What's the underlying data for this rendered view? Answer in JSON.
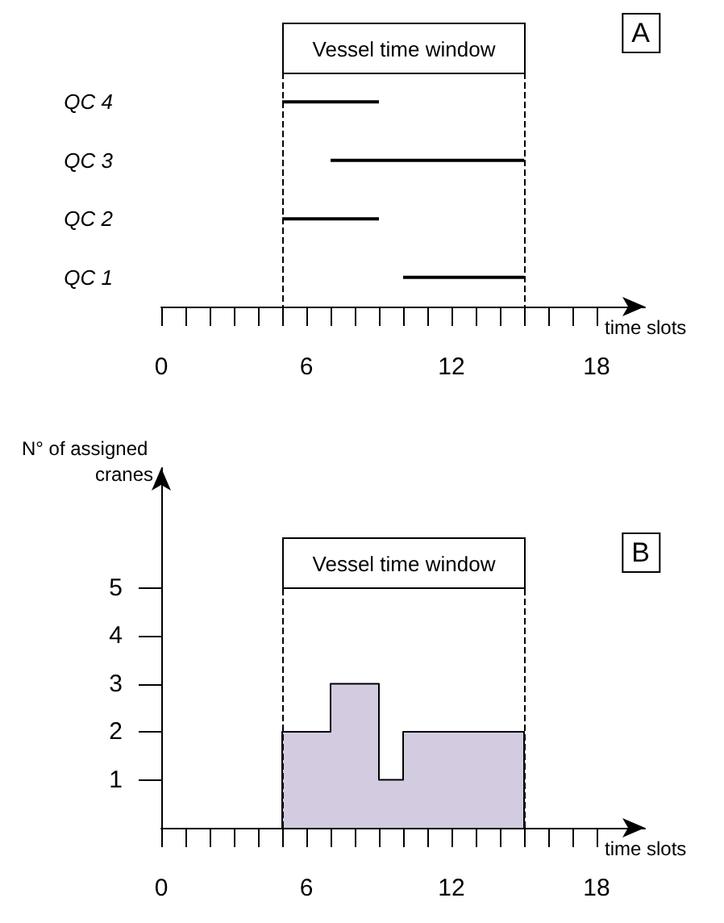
{
  "chart_data": [
    {
      "type": "bar",
      "title": "A",
      "orientation": "horizontal",
      "categories": [
        "QC 4",
        "QC 3",
        "QC 2",
        "QC 1"
      ],
      "base": [
        5,
        7,
        5,
        10
      ],
      "values": [
        4,
        8,
        4,
        5
      ],
      "color": "#000000",
      "xlabel": "time slots",
      "xlim": [
        0,
        20
      ],
      "xticks": [
        0,
        {
          "value": 1,
          "label": null
        },
        {
          "value": 2,
          "label": null
        },
        {
          "value": 3,
          "label": null
        },
        {
          "value": 4,
          "label": null
        },
        {
          "value": 5,
          "label": null
        },
        6,
        {
          "value": 7,
          "label": null
        },
        {
          "value": 8,
          "label": null
        },
        {
          "value": 9,
          "label": null
        },
        {
          "value": 10,
          "label": null
        },
        {
          "value": 11,
          "label": null
        },
        12,
        {
          "value": 13,
          "label": null
        },
        {
          "value": 14,
          "label": null
        },
        {
          "value": 15,
          "label": null
        },
        {
          "value": 16,
          "label": null
        },
        {
          "value": 17,
          "label": null
        },
        18
      ],
      "ref_lines": [
        {
          "axis": "x",
          "value": 5,
          "line_style": "dashed"
        },
        {
          "axis": "x",
          "value": 15,
          "line_style": "dashed"
        }
      ],
      "annotations": [
        "Vessel time window"
      ],
      "grid": false
    },
    {
      "type": "area",
      "title": "B",
      "x": [
        5,
        5,
        7,
        7,
        9,
        9,
        10,
        10,
        15,
        15
      ],
      "values": [
        0,
        2,
        2,
        3,
        3,
        1,
        1,
        2,
        2,
        0
      ],
      "color": "#d3cbe0",
      "xlabel": "time slots",
      "ylabel": "N° of assigned cranes",
      "xlim": [
        0,
        20
      ],
      "xticks": [
        0,
        {
          "value": 1,
          "label": null
        },
        {
          "value": 2,
          "label": null
        },
        {
          "value": 3,
          "label": null
        },
        {
          "value": 4,
          "label": null
        },
        {
          "value": 5,
          "label": null
        },
        6,
        {
          "value": 7,
          "label": null
        },
        {
          "value": 8,
          "label": null
        },
        {
          "value": 9,
          "label": null
        },
        {
          "value": 10,
          "label": null
        },
        {
          "value": 11,
          "label": null
        },
        12,
        {
          "value": 13,
          "label": null
        },
        {
          "value": 14,
          "label": null
        },
        {
          "value": 15,
          "label": null
        },
        {
          "value": 16,
          "label": null
        },
        {
          "value": 17,
          "label": null
        },
        18
      ],
      "ylim": [
        0,
        7.5
      ],
      "yticks": [
        1,
        2,
        3,
        4,
        5
      ],
      "ref_lines": [
        {
          "axis": "x",
          "value": 5,
          "line_style": "dashed"
        },
        {
          "axis": "x",
          "value": 15,
          "line_style": "dashed"
        }
      ],
      "annotations": [
        "Vessel time window"
      ],
      "grid": false
    }
  ]
}
